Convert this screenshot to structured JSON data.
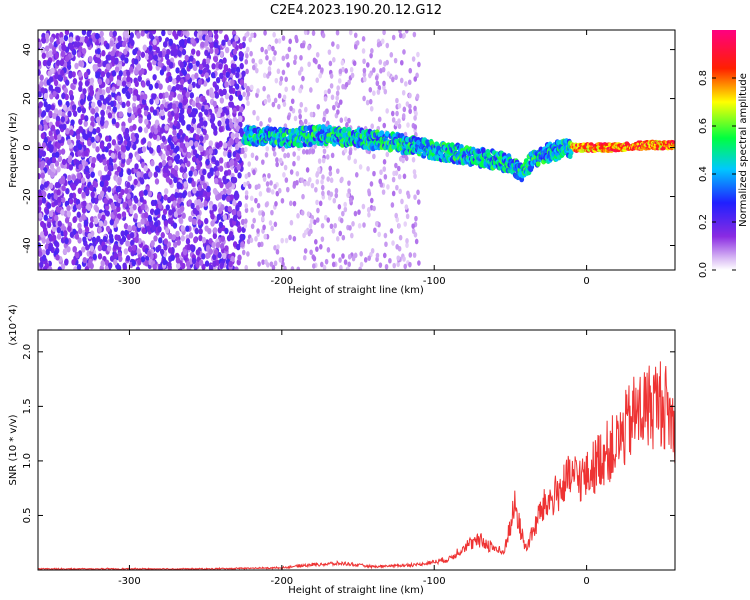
{
  "chart_data": [
    {
      "type": "heatmap",
      "title": "C2E4.2023.190.20.12.G12",
      "xlabel": "Height of straight line (km)",
      "ylabel": "Frequency (Hz)",
      "xlim": [
        -360,
        58
      ],
      "ylim": [
        -50,
        48
      ],
      "xticks": [
        "-300",
        "-200",
        "-100",
        "0"
      ],
      "yticks": [
        "40",
        "20",
        "0",
        "-20",
        "-40"
      ],
      "colorbar": {
        "label": "Normalized spectral amplitude",
        "range": [
          0.0,
          1.0
        ],
        "ticks": [
          "0.0",
          "0.2",
          "0.4",
          "0.6",
          "0.8"
        ],
        "colormap": "rainbow (purple → blue → cyan → green → yellow → red → magenta)"
      },
      "signal_track": {
        "x": [
          -225,
          -200,
          -175,
          -150,
          -140,
          -125,
          -100,
          -80,
          -60,
          -50,
          -42,
          -35,
          -25,
          -10,
          0,
          20,
          40,
          58
        ],
        "y": [
          5,
          4,
          5,
          4,
          3,
          2,
          -1,
          -3,
          -5,
          -7,
          -10,
          -5,
          -2,
          0,
          0,
          0,
          1,
          1
        ]
      }
    },
    {
      "type": "line",
      "title": "",
      "xlabel": "Height of straight line (km)",
      "ylabel": "SNR (10 * v/v)",
      "y_multiplier": "(x10^4)",
      "xlim": [
        -360,
        58
      ],
      "ylim": [
        0,
        2.2
      ],
      "xticks": [
        "-300",
        "-200",
        "-100",
        "0"
      ],
      "yticks": [
        "0.5",
        "1.0",
        "1.5",
        "2.0"
      ],
      "line_color": "#ee3333",
      "series": [
        {
          "x": [
            -360,
            -300,
            -250,
            -200,
            -180,
            -160,
            -140,
            -110,
            -90,
            -80,
            -70,
            -60,
            -55,
            -50,
            -47,
            -44,
            -40,
            -35,
            -30,
            -20,
            -10,
            0,
            10,
            20,
            30,
            40,
            50,
            58
          ],
          "y": [
            0.01,
            0.01,
            0.01,
            0.02,
            0.05,
            0.06,
            0.03,
            0.05,
            0.1,
            0.22,
            0.27,
            0.2,
            0.15,
            0.4,
            0.6,
            0.4,
            0.2,
            0.35,
            0.55,
            0.7,
            0.85,
            0.85,
            1.05,
            1.15,
            1.4,
            1.5,
            1.55,
            1.3
          ]
        }
      ]
    }
  ]
}
